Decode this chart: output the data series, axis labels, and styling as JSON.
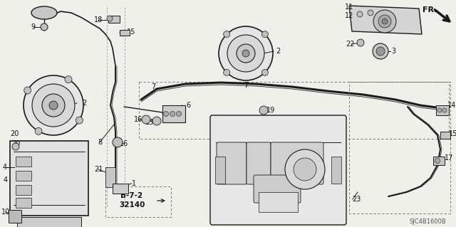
{
  "background_color": "#f0f0eb",
  "line_color": "#1a1a1a",
  "diagram_ref": "SJC4B1600B",
  "fig_w": 6.4,
  "fig_h": 3.19,
  "dpi": 100
}
